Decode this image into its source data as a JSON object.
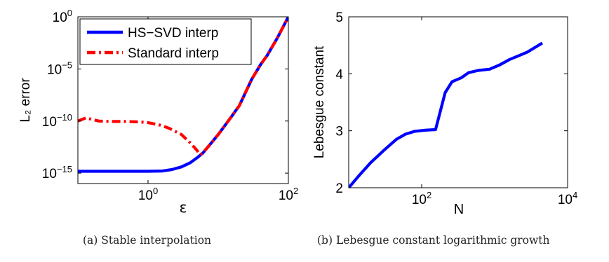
{
  "chart_data": [
    {
      "type": "line",
      "caption": "(a) Stable interpolation",
      "xlabel": "ε",
      "ylabel": "L₂ error",
      "xscale": "log",
      "yscale": "log",
      "xlim": [
        0.1,
        100
      ],
      "ylim": [
        1e-16,
        1
      ],
      "xticks": [
        {
          "value": 1,
          "base": "10",
          "exp": "0"
        },
        {
          "value": 100,
          "base": "10",
          "exp": "2"
        }
      ],
      "yticks": [
        {
          "value": 1e-15,
          "base": "10",
          "exp": "−15"
        },
        {
          "value": 1e-10,
          "base": "10",
          "exp": "−10"
        },
        {
          "value": 1e-05,
          "base": "10",
          "exp": "−5"
        },
        {
          "value": 1,
          "base": "10",
          "exp": "0"
        }
      ],
      "legend_position": "top-left",
      "grid": false,
      "series": [
        {
          "name": "HS−SVD interp",
          "color": "#0000ff",
          "style": "solid",
          "points": [
            [
              0.1,
              1.5e-15
            ],
            [
              0.2,
              1.5e-15
            ],
            [
              0.5,
              1.5e-15
            ],
            [
              1,
              1.5e-15
            ],
            [
              1.6,
              1.6e-15
            ],
            [
              2.2,
              2.2e-15
            ],
            [
              3,
              4e-15
            ],
            [
              4,
              1e-14
            ],
            [
              5,
              3e-14
            ],
            [
              6,
              8e-14
            ],
            [
              8,
              8e-13
            ],
            [
              10,
              5e-12
            ],
            [
              15,
              2e-10
            ],
            [
              20,
              3e-09
            ],
            [
              30,
              1e-06
            ],
            [
              40,
              2.5e-05
            ],
            [
              50,
              0.0002
            ],
            [
              70,
              0.01
            ],
            [
              100,
              1
            ]
          ]
        },
        {
          "name": "Standard interp",
          "color": "#ff0000",
          "style": "dashdot",
          "points": [
            [
              0.1,
              1e-10
            ],
            [
              0.13,
              2e-10
            ],
            [
              0.2,
              1e-10
            ],
            [
              0.3,
              9e-11
            ],
            [
              0.5,
              9e-11
            ],
            [
              0.8,
              8e-11
            ],
            [
              1,
              7e-11
            ],
            [
              1.5,
              4e-11
            ],
            [
              2,
              2e-11
            ],
            [
              3,
              5e-12
            ],
            [
              4,
              8e-13
            ],
            [
              5,
              1.5e-13
            ],
            [
              5.5,
              6e-14
            ],
            [
              6,
              8e-14
            ],
            [
              8,
              8e-13
            ],
            [
              10,
              5e-12
            ],
            [
              15,
              2e-10
            ],
            [
              20,
              3e-09
            ],
            [
              30,
              1e-06
            ],
            [
              40,
              2.5e-05
            ],
            [
              50,
              0.0002
            ],
            [
              70,
              0.01
            ],
            [
              100,
              1
            ]
          ]
        }
      ]
    },
    {
      "type": "line",
      "caption": "(b) Lebesgue constant logarithmic growth",
      "xlabel": "N",
      "ylabel": "Lebesgue constant",
      "xscale": "log",
      "yscale": "linear",
      "xlim": [
        10,
        10000
      ],
      "ylim": [
        2,
        5
      ],
      "xticks": [
        {
          "value": 100,
          "base": "10",
          "exp": "2"
        },
        {
          "value": 10000,
          "base": "10",
          "exp": "4"
        }
      ],
      "yticks": [
        {
          "value": 2,
          "label": "2"
        },
        {
          "value": 3,
          "label": "3"
        },
        {
          "value": 4,
          "label": "4"
        },
        {
          "value": 5,
          "label": "5"
        }
      ],
      "grid": false,
      "series": [
        {
          "color": "#0000ff",
          "style": "solid",
          "points": [
            [
              10,
              2.0
            ],
            [
              14,
              2.22
            ],
            [
              20,
              2.44
            ],
            [
              30,
              2.65
            ],
            [
              45,
              2.85
            ],
            [
              60,
              2.94
            ],
            [
              80,
              2.99
            ],
            [
              110,
              3.01
            ],
            [
              155,
              3.02
            ],
            [
              210,
              3.67
            ],
            [
              260,
              3.86
            ],
            [
              350,
              3.93
            ],
            [
              440,
              4.02
            ],
            [
              600,
              4.06
            ],
            [
              850,
              4.08
            ],
            [
              1150,
              4.15
            ],
            [
              1600,
              4.25
            ],
            [
              2800,
              4.38
            ],
            [
              4500,
              4.54
            ]
          ]
        }
      ]
    }
  ]
}
